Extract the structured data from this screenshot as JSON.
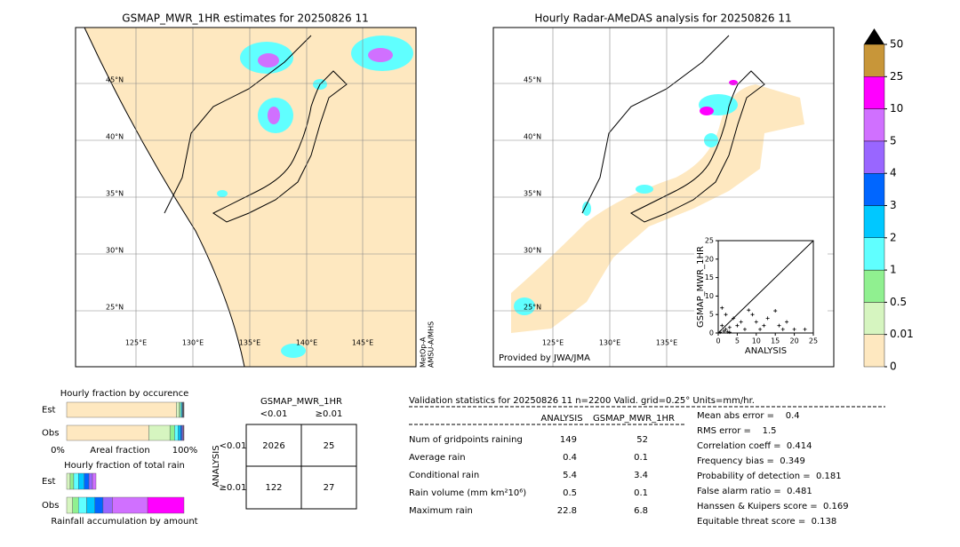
{
  "left_map": {
    "title": "GSMAP_MWR_1HR estimates for 20250826 11",
    "lat_labels": [
      "45°N",
      "40°N",
      "35°N",
      "30°N",
      "25°N"
    ],
    "lon_labels": [
      "125°E",
      "130°E",
      "135°E",
      "140°E",
      "145°E"
    ],
    "satellite_note": [
      "MetOp-A",
      "AMSU-A/MHS"
    ]
  },
  "right_map": {
    "title": "Hourly Radar-AMeDAS analysis for 20250826 11",
    "lat_labels": [
      "45°N",
      "40°N",
      "35°N",
      "30°N",
      "25°N"
    ],
    "lon_labels": [
      "125°E",
      "130°E",
      "135°E"
    ],
    "credit": "Provided by JWA/JMA"
  },
  "scatter": {
    "type": "scatter",
    "x_label": "ANALYSIS",
    "y_label": "GSMAP_MWR_1HR",
    "xlim": [
      0,
      25
    ],
    "ylim": [
      0,
      25
    ],
    "xticks": [
      0,
      5,
      10,
      15,
      20,
      25
    ],
    "yticks": [
      0,
      5,
      10,
      15,
      20,
      25
    ],
    "x": [
      0.5,
      1,
      1.5,
      2,
      2.5,
      3,
      4,
      5,
      6,
      7,
      8,
      9,
      10,
      11,
      12,
      13,
      15,
      16,
      17,
      18,
      20,
      22.8,
      1,
      2,
      3
    ],
    "y": [
      0.2,
      2,
      0.5,
      1,
      0.3,
      1.5,
      4,
      2,
      3,
      1,
      6.2,
      5,
      3,
      1,
      2,
      4,
      6,
      2,
      1,
      3,
      1,
      1,
      6.8,
      5,
      0.2
    ]
  },
  "colorbar": {
    "ticks": [
      0,
      0.01,
      0.5,
      1,
      2,
      3,
      4,
      5,
      10,
      25,
      50
    ],
    "colors": [
      "#fee8c0",
      "#d6f5c0",
      "#90f090",
      "#60ffff",
      "#00c8ff",
      "#0066ff",
      "#9966ff",
      "#d070ff",
      "#ff00ff",
      "#c89639"
    ]
  },
  "occurrence": {
    "title": "Hourly fraction by occurence",
    "rows": [
      "Est",
      "Obs"
    ],
    "axis_labels": [
      "0%",
      "Areal fraction",
      "100%"
    ],
    "est": [
      93.5,
      2.5,
      1,
      1,
      0.6,
      0.5,
      0.3,
      0.3,
      0.2,
      0.1
    ],
    "obs": [
      70,
      18,
      4,
      3,
      2,
      1.2,
      0.8,
      0.5,
      0.4,
      0.1
    ]
  },
  "accumulation": {
    "title": "Hourly fraction of total rain",
    "subtitle": "Rainfall accumulation by amount",
    "rows": [
      "Est",
      "Obs"
    ],
    "est": [
      0,
      3,
      3,
      4,
      5,
      4,
      3,
      3,
      0,
      0
    ],
    "obs": [
      0,
      5,
      5,
      7,
      7,
      7,
      8,
      30,
      31,
      0
    ]
  },
  "contingency": {
    "title": "GSMAP_MWR_1HR",
    "col_labels": [
      "<0.01",
      "≥0.01"
    ],
    "row_axis": "ANALYSIS",
    "row_labels": [
      "<0.01",
      "≥0.01"
    ],
    "cells": [
      [
        2026,
        25
      ],
      [
        122,
        27
      ]
    ]
  },
  "validation": {
    "header": "Validation statistics for 20250826 11  n=2200 Valid. grid=0.25° Units=mm/hr.",
    "columns": [
      "ANALYSIS",
      "GSMAP_MWR_1HR"
    ],
    "rows": [
      {
        "label": "Num of gridpoints raining",
        "analysis": 149,
        "gsmap": 52
      },
      {
        "label": "Average rain",
        "analysis": 0.4,
        "gsmap": 0.1
      },
      {
        "label": "Conditional rain",
        "analysis": 5.4,
        "gsmap": 3.4
      },
      {
        "label": "Rain volume (mm km²10⁶)",
        "analysis": 0.5,
        "gsmap": 0.1
      },
      {
        "label": "Maximum rain",
        "analysis": 22.8,
        "gsmap": 6.8
      }
    ],
    "scores": [
      "Mean abs error =    0.4",
      "RMS error =    1.5",
      "Correlation coeff =  0.414",
      "Frequency bias =  0.349",
      "Probability of detection =  0.181",
      "False alarm ratio =  0.481",
      "Hanssen & Kuipers score =  0.169",
      "Equitable threat score =  0.138"
    ]
  }
}
